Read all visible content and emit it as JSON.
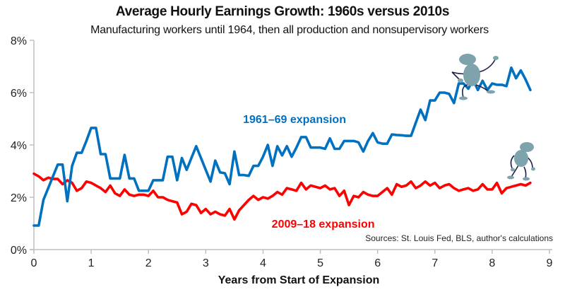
{
  "chart_data": {
    "type": "line",
    "title": "Average Hourly Earnings Growth: 1960s versus 2010s",
    "subtitle": "Manufacturing workers until 1964, then all production and nonsupervisory workers",
    "xlabel": "Years from Start of Expansion",
    "ylabel": "",
    "xlim": [
      0,
      9
    ],
    "ylim": [
      0,
      8
    ],
    "x_ticks": [
      "0",
      "1",
      "2",
      "3",
      "4",
      "5",
      "6",
      "7",
      "8",
      "9"
    ],
    "y_ticks": [
      "0%",
      "2%",
      "4%",
      "6%",
      "8%"
    ],
    "y_tick_values": [
      0,
      2,
      4,
      6,
      8
    ],
    "x_tick_values": [
      0,
      1,
      2,
      3,
      4,
      5,
      6,
      7,
      8,
      9
    ],
    "grid": false,
    "x_step_years": 0.08333,
    "source": "Sources: St. Louis Fed, BLS, author's calculations",
    "series": [
      {
        "name": "1961–69 expansion",
        "color": "#0070C0",
        "label_position": [
          4.55,
          5.0
        ],
        "values": [
          0.92,
          0.92,
          1.9,
          2.35,
          2.8,
          3.25,
          3.25,
          1.85,
          3.2,
          3.7,
          3.7,
          4.15,
          4.65,
          4.65,
          3.65,
          3.65,
          2.72,
          2.72,
          2.72,
          3.62,
          2.72,
          2.72,
          2.25,
          2.25,
          2.25,
          2.65,
          2.65,
          2.65,
          3.55,
          3.55,
          2.65,
          3.5,
          3.05,
          3.5,
          3.95,
          3.5,
          3.05,
          2.6,
          3.4,
          2.95,
          2.92,
          2.5,
          3.75,
          2.85,
          2.85,
          2.82,
          3.2,
          3.2,
          3.55,
          4.0,
          3.2,
          3.95,
          3.6,
          3.95,
          3.55,
          3.9,
          4.3,
          4.3,
          3.9,
          3.9,
          3.9,
          3.85,
          4.25,
          3.85,
          3.85,
          4.15,
          4.15,
          4.15,
          4.1,
          3.75,
          4.15,
          4.45,
          4.1,
          4.05,
          4.05,
          4.4,
          4.38,
          4.37,
          4.35,
          4.35,
          4.85,
          5.35,
          4.95,
          5.7,
          5.7,
          6.0,
          6.0,
          5.95,
          5.6,
          6.35,
          6.35,
          6.15,
          6.5,
          6.1,
          6.45,
          6.1,
          6.35,
          6.3,
          6.3,
          6.25,
          6.95,
          6.55,
          6.85,
          6.5,
          6.1
        ]
      },
      {
        "name": "2009–18 expansion",
        "color": "#FF0000",
        "label_position": [
          5.05,
          1.0
        ],
        "values": [
          2.9,
          2.8,
          2.65,
          2.75,
          2.7,
          2.7,
          2.5,
          2.65,
          2.55,
          2.25,
          2.35,
          2.6,
          2.55,
          2.45,
          2.35,
          2.2,
          2.45,
          2.15,
          2.05,
          2.3,
          2.1,
          2.05,
          2.1,
          2.1,
          2.05,
          2.25,
          2.0,
          2.0,
          1.9,
          1.85,
          1.8,
          1.35,
          1.45,
          1.75,
          1.7,
          1.4,
          1.55,
          1.35,
          1.45,
          1.35,
          1.3,
          1.55,
          1.15,
          1.5,
          1.7,
          1.9,
          2.05,
          1.9,
          2.0,
          1.95,
          2.05,
          2.2,
          2.1,
          2.35,
          2.3,
          2.25,
          2.55,
          2.3,
          2.45,
          2.4,
          2.35,
          2.45,
          2.3,
          2.35,
          2.05,
          2.25,
          1.7,
          2.05,
          2.0,
          2.2,
          2.1,
          2.05,
          2.05,
          2.2,
          2.35,
          2.1,
          2.5,
          2.4,
          2.45,
          2.6,
          2.35,
          2.45,
          2.6,
          2.45,
          2.55,
          2.35,
          2.45,
          2.5,
          2.35,
          2.25,
          2.3,
          2.35,
          2.25,
          2.3,
          2.5,
          2.3,
          2.3,
          2.55,
          2.15,
          2.35,
          2.4,
          2.45,
          2.5,
          2.45,
          2.55
        ]
      }
    ]
  },
  "decorations": [
    {
      "name": "running-figure-icon",
      "on_series": "1961–69 expansion",
      "at_year": 7.9
    },
    {
      "name": "walking-figure-icon",
      "on_series": "2009–18 expansion",
      "at_year": 8.45
    }
  ]
}
